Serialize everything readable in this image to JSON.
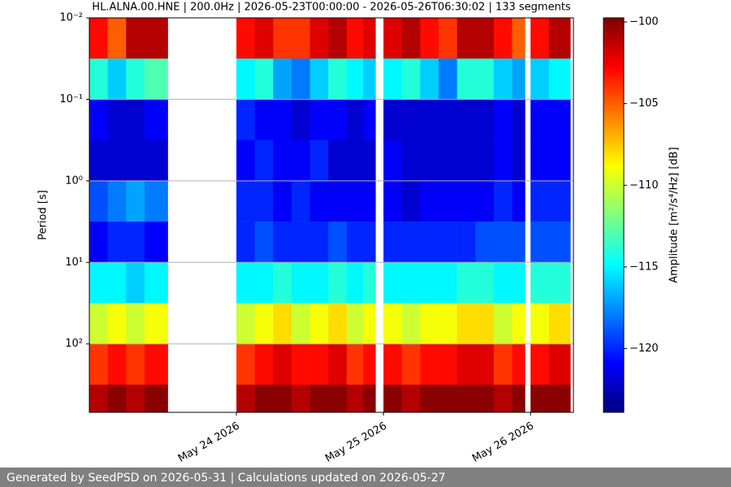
{
  "chart_data": {
    "type": "heatmap",
    "title": "HL.ALNA.00.HNE | 200.0Hz | 2026-05-23T00:00:00 - 2026-05-26T06:30:02 | 133 segments",
    "y_label": "Period [s]",
    "colorbar_label": "Amplitude [m²/s⁴/Hz] [dB]",
    "footer": "Generated by SeedPSD on 2026-05-31 | Calculations updated on 2026-05-27",
    "colormap": "jet",
    "grid": true,
    "yscale": "log",
    "y_inverted": true,
    "xlim": [
      "2026-05-23T00:00",
      "2026-05-26T07:00"
    ],
    "xticks": [
      {
        "value": "2026-05-24T00:00",
        "label": "May 24 2026"
      },
      {
        "value": "2026-05-25T00:00",
        "label": "May 25 2026"
      },
      {
        "value": "2026-05-26T00:00",
        "label": "May 26 2026"
      }
    ],
    "ylim": [
      0.01,
      690
    ],
    "yticks": [
      {
        "value": 0.01,
        "label": "10⁻²"
      },
      {
        "value": 0.1,
        "label": "10⁻¹"
      },
      {
        "value": 1,
        "label": "10⁰"
      },
      {
        "value": 10,
        "label": "10¹"
      },
      {
        "value": 100,
        "label": "10²"
      }
    ],
    "clim": [
      -123.9,
      -99.75
    ],
    "cticks": [
      {
        "value": -100,
        "label": "−100"
      },
      {
        "value": -105,
        "label": "−105"
      },
      {
        "value": -110,
        "label": "−110"
      },
      {
        "value": -115,
        "label": "−115"
      },
      {
        "value": -120,
        "label": "−120"
      }
    ],
    "x_edges": [
      "2026-05-23T00:00",
      "2026-05-23T03:00",
      "2026-05-23T06:00",
      "2026-05-23T09:00",
      "2026-05-23T12:48",
      "2026-05-24T00:00",
      "2026-05-24T03:00",
      "2026-05-24T06:00",
      "2026-05-24T09:00",
      "2026-05-24T12:00",
      "2026-05-24T15:00",
      "2026-05-24T18:00",
      "2026-05-24T20:42",
      "2026-05-24T22:42",
      "2026-05-25T00:00",
      "2026-05-25T03:00",
      "2026-05-25T06:00",
      "2026-05-25T09:00",
      "2026-05-25T12:00",
      "2026-05-25T15:00",
      "2026-05-25T18:00",
      "2026-05-25T21:00",
      "2026-05-25T23:06",
      "2026-05-26T00:00",
      "2026-05-26T03:00",
      "2026-05-26T06:30"
    ],
    "y_edges": [
      0.01,
      0.0316,
      0.1,
      0.316,
      1,
      3.16,
      10,
      31.6,
      100,
      316,
      690
    ],
    "values": [
      [
        -103,
        -105,
        -101,
        -101,
        null,
        -103,
        -102,
        -104,
        -104,
        -102,
        -101,
        -103,
        -102,
        null,
        -102,
        -101,
        -103,
        -104,
        -101,
        -101,
        -103,
        -105,
        null,
        -103,
        -101
      ],
      [
        -114,
        -116,
        -114,
        -113,
        null,
        -115,
        -114,
        -117,
        -118,
        -116,
        -114,
        -115,
        -116,
        null,
        -115,
        -114,
        -116,
        -118,
        -114,
        -114,
        -116,
        -117,
        null,
        -116,
        -115
      ],
      [
        -121,
        -122,
        -122,
        -121,
        null,
        -120,
        -121,
        -121,
        -122,
        -121,
        -121,
        -122,
        -121,
        null,
        -122,
        -122,
        -122,
        -122,
        -122,
        -122,
        -121,
        -122,
        null,
        -121,
        -121
      ],
      [
        -122,
        -122,
        -122,
        -122,
        null,
        -121,
        -120,
        -121,
        -121,
        -120,
        -122,
        -122,
        -122,
        null,
        -121,
        -122,
        -122,
        -122,
        -122,
        -122,
        -121,
        -122,
        null,
        -121,
        -121
      ],
      [
        -119,
        -118,
        -117,
        -118,
        null,
        -120,
        -120,
        -121,
        -120,
        -121,
        -121,
        -121,
        -121,
        null,
        -121,
        -122,
        -121,
        -121,
        -121,
        -121,
        -120,
        -121,
        null,
        -120,
        -120
      ],
      [
        -121,
        -120,
        -120,
        -121,
        null,
        -120,
        -119,
        -120,
        -120,
        -120,
        -119,
        -120,
        -120,
        null,
        -120,
        -120,
        -120,
        -120,
        -120,
        -119,
        -119,
        -119,
        null,
        -119,
        -119
      ],
      [
        -115,
        -115,
        -116,
        -115,
        null,
        -115,
        -115,
        -114,
        -115,
        -115,
        -114,
        -115,
        -114,
        null,
        -115,
        -115,
        -115,
        -115,
        -114,
        -114,
        -115,
        -115,
        null,
        -114,
        -114
      ],
      [
        -110,
        -109,
        -110,
        -109,
        null,
        -110,
        -109,
        -108,
        -110,
        -109,
        -108,
        -110,
        -109,
        null,
        -109,
        -110,
        -109,
        -109,
        -108,
        -108,
        -110,
        -109,
        null,
        -109,
        -108
      ],
      [
        -104,
        -103,
        -104,
        -103,
        null,
        -104,
        -103,
        -102,
        -103,
        -103,
        -102,
        -104,
        -103,
        null,
        -103,
        -104,
        -103,
        -103,
        -102,
        -102,
        -104,
        -103,
        null,
        -103,
        -102
      ],
      [
        -101,
        -100,
        -101,
        -100,
        null,
        -101,
        -100,
        -100,
        -101,
        -100,
        -100,
        -101,
        -100,
        null,
        -100,
        -101,
        -100,
        -100,
        -100,
        -100,
        -101,
        -100,
        null,
        -100,
        -100
      ]
    ]
  }
}
